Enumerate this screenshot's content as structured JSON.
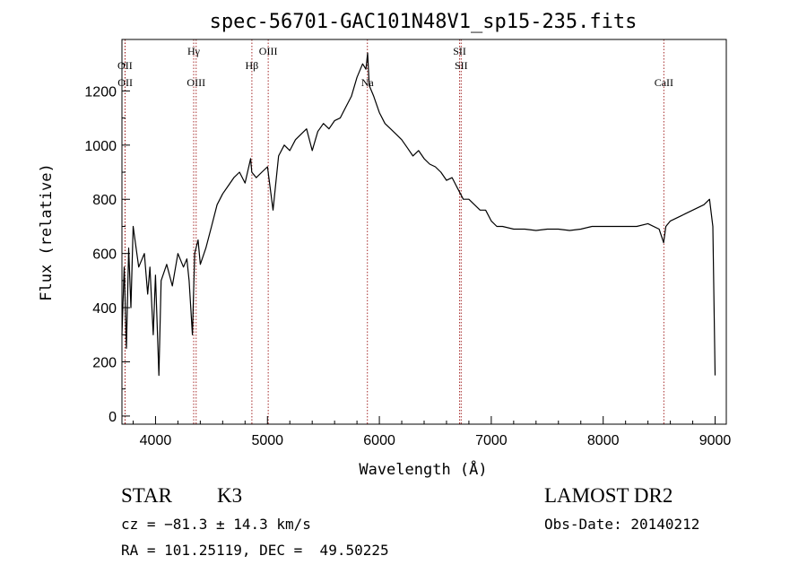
{
  "chart_data": {
    "type": "line",
    "title": "spec-56701-GAC101N48V1_sp15-235.fits",
    "xlabel": "Wavelength (Å)",
    "ylabel": "Flux (relative)",
    "xlim": [
      3700,
      9100
    ],
    "ylim": [
      -30,
      1390
    ],
    "x_ticks": [
      4000,
      5000,
      6000,
      7000,
      8000,
      9000
    ],
    "y_ticks": [
      0,
      200,
      400,
      600,
      800,
      1000,
      1200
    ],
    "grid": false,
    "series": [
      {
        "color": "#000000",
        "x": [
          3700,
          3720,
          3740,
          3760,
          3780,
          3800,
          3850,
          3900,
          3930,
          3950,
          3980,
          4000,
          4030,
          4050,
          4100,
          4150,
          4200,
          4250,
          4280,
          4300,
          4330,
          4350,
          4380,
          4400,
          4450,
          4500,
          4550,
          4600,
          4650,
          4700,
          4750,
          4800,
          4850,
          4860,
          4900,
          4950,
          5000,
          5050,
          5100,
          5150,
          5200,
          5250,
          5300,
          5350,
          5400,
          5450,
          5500,
          5550,
          5600,
          5650,
          5700,
          5750,
          5800,
          5850,
          5880,
          5895,
          5910,
          5950,
          6000,
          6050,
          6100,
          6150,
          6200,
          6250,
          6300,
          6350,
          6400,
          6450,
          6500,
          6550,
          6600,
          6650,
          6700,
          6750,
          6800,
          6850,
          6900,
          6950,
          7000,
          7050,
          7100,
          7200,
          7300,
          7400,
          7500,
          7600,
          7700,
          7800,
          7900,
          8000,
          8100,
          8200,
          8300,
          8400,
          8500,
          8540,
          8560,
          8600,
          8700,
          8800,
          8900,
          8950,
          8980,
          9000
        ],
        "y": [
          300,
          550,
          250,
          620,
          400,
          700,
          550,
          600,
          450,
          550,
          300,
          520,
          150,
          500,
          560,
          480,
          600,
          550,
          580,
          500,
          300,
          600,
          650,
          560,
          620,
          700,
          780,
          820,
          850,
          880,
          900,
          860,
          950,
          900,
          880,
          900,
          920,
          760,
          960,
          1000,
          980,
          1020,
          1040,
          1060,
          980,
          1050,
          1080,
          1060,
          1090,
          1100,
          1140,
          1180,
          1250,
          1300,
          1280,
          1340,
          1220,
          1180,
          1120,
          1080,
          1060,
          1040,
          1020,
          990,
          960,
          980,
          950,
          930,
          920,
          900,
          870,
          880,
          840,
          800,
          800,
          780,
          760,
          760,
          720,
          700,
          700,
          690,
          690,
          685,
          690,
          690,
          685,
          690,
          700,
          700,
          700,
          700,
          700,
          710,
          690,
          640,
          700,
          720,
          740,
          760,
          780,
          800,
          700,
          150
        ]
      }
    ],
    "annotations": [
      {
        "label": "OII",
        "x": 3727,
        "row": "upper"
      },
      {
        "label": "OII",
        "x": 3729,
        "row": "lower"
      },
      {
        "label": "Hγ",
        "x": 4341,
        "row": "top"
      },
      {
        "label": "OIII",
        "x": 4363,
        "row": "lower"
      },
      {
        "label": "Hβ",
        "x": 4861,
        "row": "upper"
      },
      {
        "label": "OIII",
        "x": 5007,
        "row": "top"
      },
      {
        "label": "Na",
        "x": 5893,
        "row": "lower"
      },
      {
        "label": "SII",
        "x": 6717,
        "row": "top"
      },
      {
        "label": "SII",
        "x": 6731,
        "row": "upper"
      },
      {
        "label": "CaII",
        "x": 8542,
        "row": "lower"
      }
    ]
  },
  "info": {
    "class": "STAR",
    "subclass": "K3",
    "survey": "LAMOST DR2",
    "velocity": "cz = −81.3 ± 14.3 km/s",
    "obs_date": "Obs-Date: 20140212",
    "coords": "RA = 101.25119, DEC =  49.50225"
  },
  "colors": {
    "line": "#000000",
    "marker_lines": "#a52a2a",
    "background": "#ffffff"
  }
}
